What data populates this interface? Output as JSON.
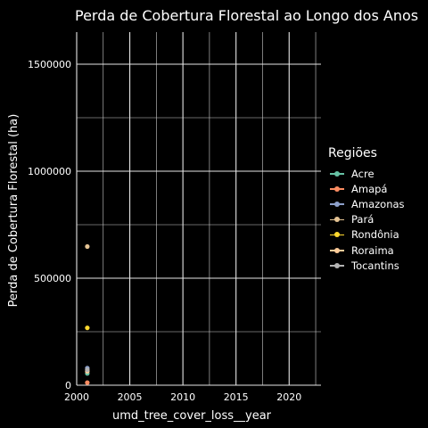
{
  "chart_data": {
    "type": "scatter",
    "title": "Perda de Cobertura Florestal ao Longo dos Anos",
    "xlabel": "umd_tree_cover_loss__year",
    "ylabel": "Perda de Cobertura Florestal (ha)",
    "xlim": [
      2000,
      2023
    ],
    "ylim": [
      0,
      1650000
    ],
    "x_ticks": [
      2000,
      2005,
      2010,
      2015,
      2020
    ],
    "y_ticks": [
      0,
      500000,
      1000000,
      1500000
    ],
    "x_tick_labels": [
      "2000",
      "2005",
      "2010",
      "2015",
      "2020"
    ],
    "y_tick_labels": [
      "0",
      "500000",
      "1000000",
      "1500000"
    ],
    "grid": true,
    "legend_title": "Regiões",
    "legend_position": "right",
    "series": [
      {
        "name": "Acre",
        "color": "#66c2a5",
        "points": [
          {
            "x": 2001,
            "y": 55000
          }
        ]
      },
      {
        "name": "Amapá",
        "color": "#fc8d62",
        "points": [
          {
            "x": 2001,
            "y": 12000
          }
        ]
      },
      {
        "name": "Amazonas",
        "color": "#8da0cb",
        "points": [
          {
            "x": 2001,
            "y": 80000
          }
        ]
      },
      {
        "name": "Pará",
        "color": "#e5c494",
        "points": [
          {
            "x": 2001,
            "y": 648000
          }
        ]
      },
      {
        "name": "Rondônia",
        "color": "#ffd92f",
        "points": [
          {
            "x": 2001,
            "y": 268000
          }
        ]
      },
      {
        "name": "Roraima",
        "color": "#ffcc99",
        "points": [
          {
            "x": 2001,
            "y": 65000
          }
        ]
      },
      {
        "name": "Tocantins",
        "color": "#b3b3b3",
        "points": [
          {
            "x": 2001,
            "y": 72000
          }
        ]
      }
    ]
  }
}
